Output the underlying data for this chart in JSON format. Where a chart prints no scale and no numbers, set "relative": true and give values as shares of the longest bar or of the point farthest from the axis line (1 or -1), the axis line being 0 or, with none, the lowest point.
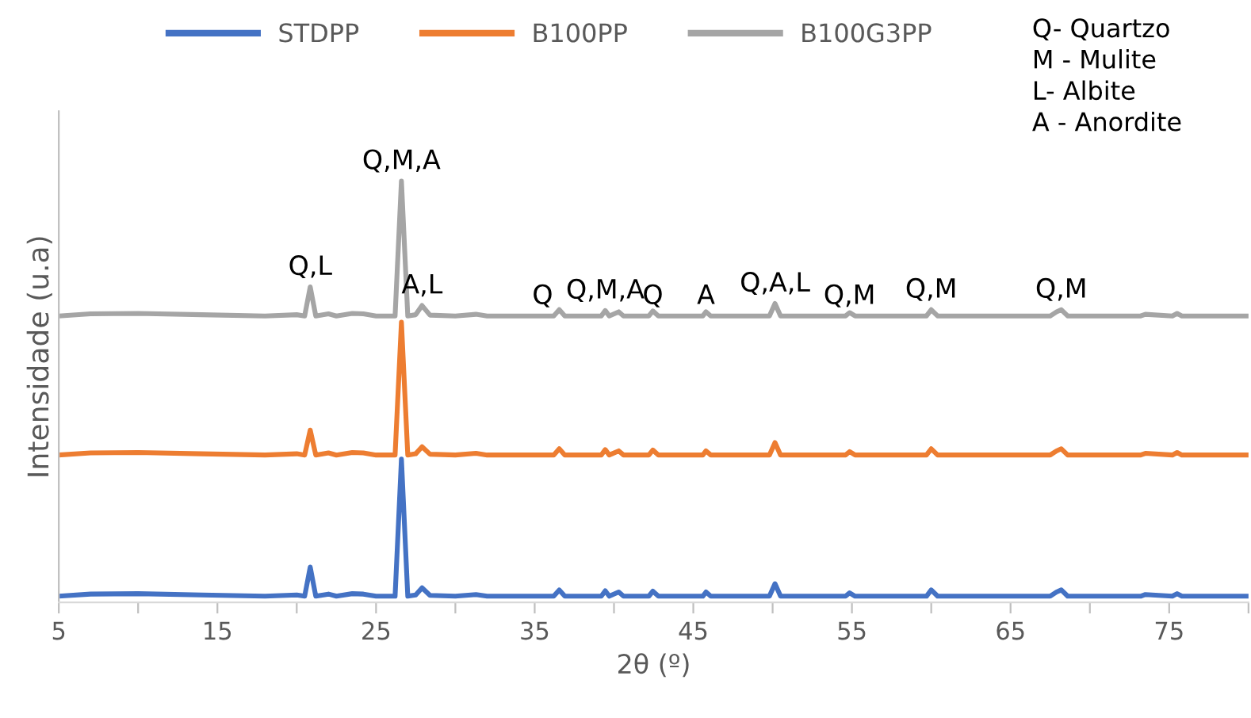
{
  "chart_data": {
    "type": "line",
    "relative": true,
    "xlabel": "2θ (º)",
    "ylabel": "Intensidade (u.a)",
    "x": [
      5,
      7,
      10,
      14,
      18,
      20,
      20.5,
      20.85,
      21.2,
      22,
      22.5,
      23.5,
      24.2,
      25,
      26.2,
      26.6,
      27,
      27.5,
      27.9,
      28.4,
      30,
      31.3,
      32,
      35,
      36.2,
      36.55,
      36.9,
      39.2,
      39.45,
      39.7,
      40.3,
      40.6,
      42.2,
      42.45,
      42.8,
      45.6,
      45.8,
      46.1,
      49.8,
      50.15,
      50.5,
      54.6,
      54.85,
      55.2,
      59.7,
      60,
      60.4,
      67.5,
      67.9,
      68.2,
      68.6,
      73.2,
      73.5,
      75.2,
      75.5,
      75.8,
      80
    ],
    "xlim": [
      5,
      80
    ],
    "xticks": [
      5,
      {
        "value": 10,
        "label": null
      },
      15,
      {
        "value": 20,
        "label": null
      },
      25,
      {
        "value": 30,
        "label": null
      },
      35,
      {
        "value": 40,
        "label": null
      },
      45,
      {
        "value": 50,
        "label": null
      },
      55,
      {
        "value": 60,
        "label": null
      },
      65,
      {
        "value": 70,
        "label": null
      },
      75,
      {
        "value": 80,
        "label": null
      }
    ],
    "grid": false,
    "legend": "top",
    "line_style": "solid",
    "marker": "none",
    "series": [
      {
        "name": "STDPP",
        "color": "#4472c4",
        "values": [
          0,
          0.005,
          0.006,
          0.003,
          0,
          0.003,
          0,
          0.07,
          0,
          0.005,
          0,
          0.006,
          0.005,
          0,
          0,
          0.33,
          0,
          0.003,
          0.02,
          0.002,
          0,
          0.004,
          0,
          0,
          0,
          0.015,
          0,
          0,
          0.013,
          0,
          0.01,
          0,
          0,
          0.012,
          0,
          0,
          0.01,
          0,
          0,
          0.03,
          0,
          0,
          0.008,
          0,
          0,
          0.015,
          0,
          0,
          0.01,
          0.015,
          0,
          0,
          0.004,
          0,
          0.006,
          0,
          0
        ]
      },
      {
        "name": "B100PP",
        "color": "#ed7d31",
        "values": [
          0.34,
          0.345,
          0.346,
          0.343,
          0.34,
          0.343,
          0.34,
          0.4,
          0.34,
          0.345,
          0.34,
          0.346,
          0.345,
          0.34,
          0.34,
          0.66,
          0.34,
          0.343,
          0.36,
          0.342,
          0.34,
          0.344,
          0.34,
          0.34,
          0.34,
          0.355,
          0.34,
          0.34,
          0.353,
          0.34,
          0.35,
          0.34,
          0.34,
          0.352,
          0.34,
          0.34,
          0.35,
          0.34,
          0.34,
          0.37,
          0.34,
          0.34,
          0.348,
          0.34,
          0.34,
          0.355,
          0.34,
          0.34,
          0.35,
          0.355,
          0.34,
          0.34,
          0.344,
          0.34,
          0.346,
          0.34,
          0.34
        ]
      },
      {
        "name": "B100G3PP",
        "color": "#a5a5a5",
        "values": [
          0.675,
          0.68,
          0.681,
          0.678,
          0.675,
          0.678,
          0.675,
          0.745,
          0.675,
          0.68,
          0.675,
          0.681,
          0.68,
          0.675,
          0.675,
          1,
          0.675,
          0.678,
          0.7,
          0.677,
          0.675,
          0.679,
          0.675,
          0.675,
          0.675,
          0.69,
          0.675,
          0.675,
          0.688,
          0.675,
          0.685,
          0.675,
          0.675,
          0.687,
          0.675,
          0.675,
          0.685,
          0.675,
          0.675,
          0.705,
          0.675,
          0.675,
          0.683,
          0.675,
          0.675,
          0.69,
          0.675,
          0.675,
          0.685,
          0.69,
          0.675,
          0.675,
          0.679,
          0.675,
          0.681,
          0.675,
          0.675
        ]
      }
    ],
    "annotations": [
      {
        "text": "Q,L",
        "x": 20.85,
        "y": 0.745
      },
      {
        "text": "Q,M,A",
        "x": 26.6,
        "y": 1
      },
      {
        "text": "A,L",
        "x": 27.9,
        "y": 0.7
      },
      {
        "text": "Q",
        "x": 35.5,
        "y": 0.675
      },
      {
        "text": "Q,M,A",
        "x": 39.45,
        "y": 0.688
      },
      {
        "text": "Q",
        "x": 42.45,
        "y": 0.675
      },
      {
        "text": "A",
        "x": 45.8,
        "y": 0.675
      },
      {
        "text": "Q,A,L",
        "x": 50.15,
        "y": 0.705
      },
      {
        "text": "Q,M",
        "x": 54.85,
        "y": 0.675
      },
      {
        "text": "Q,M",
        "x": 60,
        "y": 0.69
      },
      {
        "text": "Q,M",
        "x": 68.2,
        "y": 0.69
      },
      "Q- Quartzo\nM - Mulite\nL- Albite\nA - Anordite"
    ]
  }
}
